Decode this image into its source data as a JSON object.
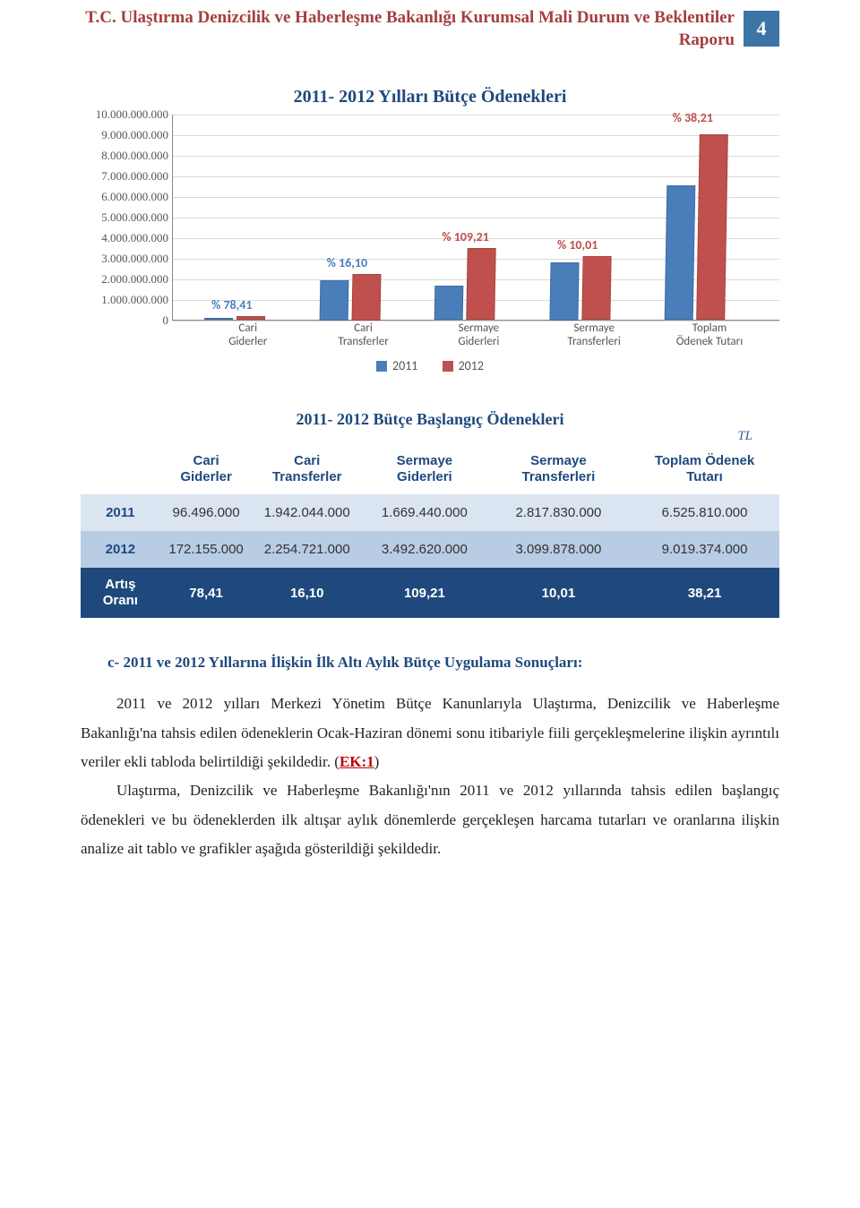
{
  "header": {
    "title_line1": "T.C. Ulaştırma Denizcilik ve Haberleşme Bakanlığı Kurumsal Mali Durum ve Beklentiler",
    "title_line2": "Raporu",
    "page_number": "4"
  },
  "chart": {
    "title": "2011- 2012 Yılları Bütçe Ödenekleri",
    "ymax": 10000000000,
    "ytick_step": 1000000000,
    "yticks": [
      "10.000.000.000",
      "9.000.000.000",
      "8.000.000.000",
      "7.000.000.000",
      "6.000.000.000",
      "5.000.000.000",
      "4.000.000.000",
      "3.000.000.000",
      "2.000.000.000",
      "1.000.000.000",
      "0"
    ],
    "categories": [
      "Cari Giderler",
      "Cari Transferler",
      "Sermaye Giderleri",
      "Sermaye Transferleri",
      "Toplam Ödenek Tutarı"
    ],
    "series": [
      {
        "name": "2011",
        "color": "#4a7ebb",
        "values": [
          96496000,
          1942044000,
          1669440000,
          2817830000,
          6525810000
        ]
      },
      {
        "name": "2012",
        "color": "#c0504d",
        "values": [
          172155000,
          2254721000,
          3492620000,
          3099878000,
          9019374000
        ]
      }
    ],
    "pct_labels": [
      "% 78,41",
      "% 16,10",
      "% 109,21",
      "% 10,01",
      "% 38,21"
    ],
    "legend": [
      "2011",
      "2012"
    ]
  },
  "table": {
    "title": "2011- 2012 Bütçe Başlangıç Ödenekleri",
    "currency": "TL",
    "columns": [
      "",
      "Cari Giderler",
      "Cari Transferler",
      "Sermaye Giderleri",
      "Sermaye Transferleri",
      "Toplam Ödenek Tutarı"
    ],
    "rows": [
      {
        "head": "2011",
        "cells": [
          "96.496.000",
          "1.942.044.000",
          "1.669.440.000",
          "2.817.830.000",
          "6.525.810.000"
        ]
      },
      {
        "head": "2012",
        "cells": [
          "172.155.000",
          "2.254.721.000",
          "3.492.620.000",
          "3.099.878.000",
          "9.019.374.000"
        ]
      },
      {
        "head": "Artış Oranı",
        "cells": [
          "78,41",
          "16,10",
          "109,21",
          "10,01",
          "38,21"
        ]
      }
    ]
  },
  "section_c": {
    "heading": "c- 2011 ve 2012 Yıllarına İlişkin İlk Altı Aylık Bütçe Uygulama Sonuçları:",
    "para1_a": "2011 ve 2012 yılları Merkezi Yönetim Bütçe Kanunlarıyla Ulaştırma, Denizcilik ve Haberleşme Bakanlığı'na tahsis edilen ödeneklerin Ocak-Haziran dönemi sonu itibariyle fiili gerçekleşmelerine ilişkin ayrıntılı veriler ekli tabloda belirtildiği şekildedir. ",
    "ek1": "EK:1",
    "para2": "Ulaştırma, Denizcilik ve Haberleşme Bakanlığı'nın 2011 ve 2012 yıllarında tahsis edilen başlangıç ödenekleri ve bu ödeneklerden ilk altışar aylık dönemlerde gerçekleşen harcama tutarları ve oranlarına ilişkin analize ait tablo ve grafikler aşağıda gösterildiği şekildedir."
  }
}
